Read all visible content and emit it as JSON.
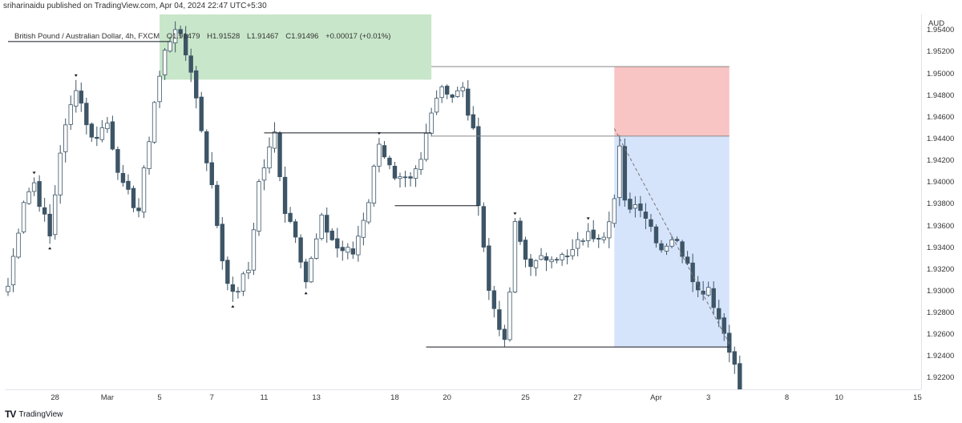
{
  "header": {
    "published_text": "sriharinaidu published on TradingView.com, Apr 04, 2024 22:47 UTC+5:30"
  },
  "legend": {
    "symbol": "British Pound / Australian Dollar, 4h, FXCM",
    "open": "O1.91479",
    "high": "H1.91528",
    "low": "L1.91467",
    "close": "C1.91496",
    "change": "+0.00017 (+0.01%)"
  },
  "price_axis": {
    "currency": "AUD",
    "ticks": [
      "1.95400",
      "1.95200",
      "1.95000",
      "1.94800",
      "1.94600",
      "1.94400",
      "1.94200",
      "1.94000",
      "1.93800",
      "1.93600",
      "1.93400",
      "1.93200",
      "1.93000",
      "1.92800",
      "1.92600",
      "1.92400",
      "1.92200"
    ]
  },
  "time_axis": {
    "ticks": [
      "28",
      "Mar",
      "5",
      "7",
      "11",
      "13",
      "18",
      "20",
      "25",
      "27",
      "Apr",
      "3",
      "8",
      "10",
      "15"
    ]
  },
  "footer": {
    "logo": "TV",
    "brand": "TradingView"
  },
  "colors": {
    "candle": "#3d5566",
    "candle_hollow": "#ffffff",
    "supply_zone": "#c8e6c9",
    "stop_zone": "#f9c4c4",
    "target_zone": "#d6e4fb",
    "level_line": "#131722",
    "fractal_marker": "#131722"
  },
  "chart_data": {
    "type": "candlestick",
    "title": "British Pound / Australian Dollar, 4h, FXCM",
    "ylim": [
      1.921,
      1.9555
    ],
    "xlabel": "",
    "ylabel": "",
    "grid": false,
    "legend": "top-left",
    "time_ticks": [
      {
        "label": "28",
        "bar": 9
      },
      {
        "label": "Mar",
        "bar": 19
      },
      {
        "label": "5",
        "bar": 29
      },
      {
        "label": "7",
        "bar": 39
      },
      {
        "label": "11",
        "bar": 49
      },
      {
        "label": "13",
        "bar": 59
      },
      {
        "label": "18",
        "bar": 74
      },
      {
        "label": "20",
        "bar": 84
      },
      {
        "label": "25",
        "bar": 99
      },
      {
        "label": "27",
        "bar": 109
      },
      {
        "label": "Apr",
        "bar": 124
      },
      {
        "label": "3",
        "bar": 134
      },
      {
        "label": "8",
        "bar": 149
      },
      {
        "label": "10",
        "bar": 159
      },
      {
        "label": "15",
        "bar": 174
      }
    ],
    "waypoints": [
      [
        0,
        1.9305
      ],
      [
        3,
        1.9385
      ],
      [
        5,
        1.94
      ],
      [
        8,
        1.935
      ],
      [
        10,
        1.943
      ],
      [
        13,
        1.949
      ],
      [
        16,
        1.944
      ],
      [
        19,
        1.9455
      ],
      [
        22,
        1.9395
      ],
      [
        25,
        1.9375
      ],
      [
        28,
        1.9475
      ],
      [
        30,
        1.952
      ],
      [
        32,
        1.9545
      ],
      [
        35,
        1.9505
      ],
      [
        37,
        1.945
      ],
      [
        39,
        1.9395
      ],
      [
        41,
        1.933
      ],
      [
        43,
        1.9295
      ],
      [
        46,
        1.932
      ],
      [
        48,
        1.94
      ],
      [
        51,
        1.9445
      ],
      [
        53,
        1.9375
      ],
      [
        55,
        1.9355
      ],
      [
        57,
        1.931
      ],
      [
        60,
        1.9365
      ],
      [
        63,
        1.934
      ],
      [
        66,
        1.9335
      ],
      [
        69,
        1.9385
      ],
      [
        71,
        1.944
      ],
      [
        74,
        1.94
      ],
      [
        77,
        1.94
      ],
      [
        79,
        1.942
      ],
      [
        81,
        1.947
      ],
      [
        83,
        1.949
      ],
      [
        85,
        1.948
      ],
      [
        87,
        1.9485
      ],
      [
        89,
        1.9445
      ],
      [
        90,
        1.9385
      ],
      [
        92,
        1.93
      ],
      [
        94,
        1.927
      ],
      [
        95,
        1.925
      ],
      [
        96,
        1.93
      ],
      [
        97,
        1.936
      ],
      [
        99,
        1.933
      ],
      [
        101,
        1.9325
      ],
      [
        104,
        1.9335
      ],
      [
        107,
        1.933
      ],
      [
        110,
        1.935
      ],
      [
        114,
        1.9355
      ],
      [
        116,
        1.9385
      ],
      [
        117,
        1.943
      ],
      [
        118,
        1.938
      ],
      [
        121,
        1.938
      ],
      [
        123,
        1.936
      ],
      [
        125,
        1.934
      ],
      [
        127,
        1.935
      ],
      [
        130,
        1.933
      ],
      [
        132,
        1.93
      ],
      [
        134,
        1.9305
      ],
      [
        136,
        1.9275
      ],
      [
        138,
        1.925
      ],
      [
        140,
        1.921
      ]
    ],
    "levels": [
      {
        "name": "level-top-left",
        "y": 1.953,
        "from_bar": 0,
        "to_bar": 31
      },
      {
        "name": "level-high-mid",
        "y": 1.9507,
        "from_bar": 81,
        "to_bar": 138
      },
      {
        "name": "level-mid",
        "y": 1.9446,
        "from_bar": 49,
        "to_bar": 81
      },
      {
        "name": "level-entry",
        "y": 1.9443,
        "from_bar": 81,
        "to_bar": 138
      },
      {
        "name": "level-low-mid",
        "y": 1.9379,
        "from_bar": 74,
        "to_bar": 90
      },
      {
        "name": "level-bottom",
        "y": 1.9249,
        "from_bar": 80,
        "to_bar": 138
      }
    ],
    "zones": [
      {
        "name": "supply-zone",
        "from_bar": 29,
        "to_bar": 81,
        "y1": 1.9495,
        "y2": 1.9555,
        "color": "supply_zone"
      },
      {
        "name": "stop-zone",
        "from_bar": 116,
        "to_bar": 138,
        "y1": 1.9443,
        "y2": 1.9507,
        "color": "stop_zone"
      },
      {
        "name": "target-zone",
        "from_bar": 116,
        "to_bar": 138,
        "y1": 1.9249,
        "y2": 1.9443,
        "color": "target_zone"
      }
    ],
    "projection": {
      "from_bar": 116,
      "from_y": 1.945,
      "to_bar": 138,
      "to_y": 1.9252
    }
  }
}
